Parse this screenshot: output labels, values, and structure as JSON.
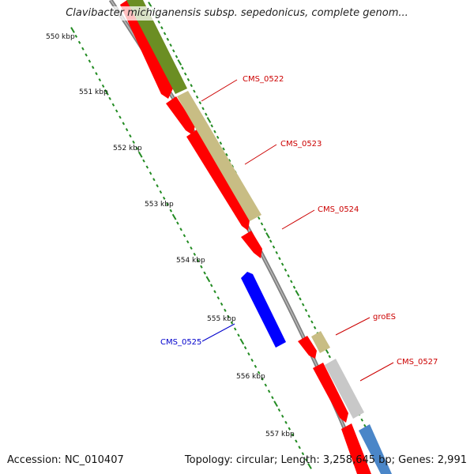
{
  "header": {
    "title": "Clavibacter michiganensis subsp. sepedonicus, complete genom..."
  },
  "footer": {
    "accession": "Accession: NC_010407",
    "summary": "Topology: circular; Length: 3,258,645 bp; Genes: 2,991"
  },
  "ruler": {
    "labels": [
      "550 kbp",
      "551 kbp",
      "552 kbp",
      "553 kbp",
      "554 kbp",
      "555 kbp",
      "556 kbp",
      "557 kbp"
    ]
  },
  "genes": [
    {
      "name": "CMS_0522",
      "color": "#cc0000"
    },
    {
      "name": "CMS_0523",
      "color": "#cc0000"
    },
    {
      "name": "CMS_0524",
      "color": "#cc0000"
    },
    {
      "name": "CMS_0525",
      "color": "#0000cc"
    },
    {
      "name": "groES",
      "color": "#cc0000"
    },
    {
      "name": "CMS_0527",
      "color": "#cc0000"
    }
  ],
  "colors": {
    "forward_cds": "#ff0000",
    "reverse_cds": "#0000ff",
    "backbone": "#8c8c8c",
    "tick": "#228b22",
    "olive": "#6b8e23",
    "khaki": "#c2b77a",
    "silver": "#c8c8c8",
    "steelblue": "#4a86c8"
  }
}
